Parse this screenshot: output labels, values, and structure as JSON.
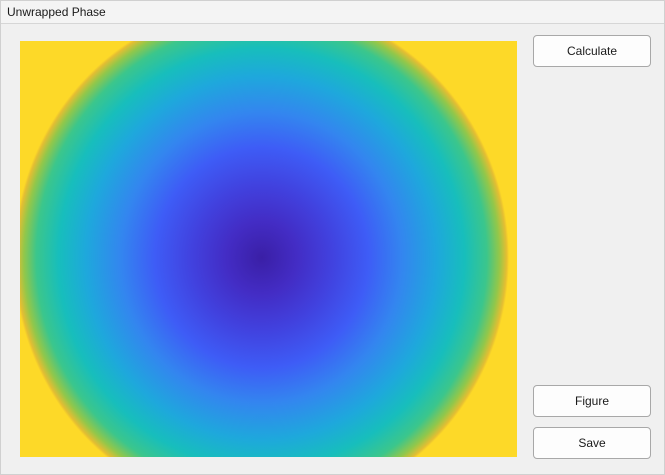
{
  "panel": {
    "title": "Unwrapped Phase"
  },
  "plot": {
    "colormap": "parula",
    "colors": {
      "center": "#3a1fa6",
      "mid_blue": "#3e5cf6",
      "cyan": "#17bebc",
      "corner": "#fdd928"
    }
  },
  "buttons": {
    "calculate_label": "Calculate",
    "figure_label": "Figure",
    "save_label": "Save"
  }
}
